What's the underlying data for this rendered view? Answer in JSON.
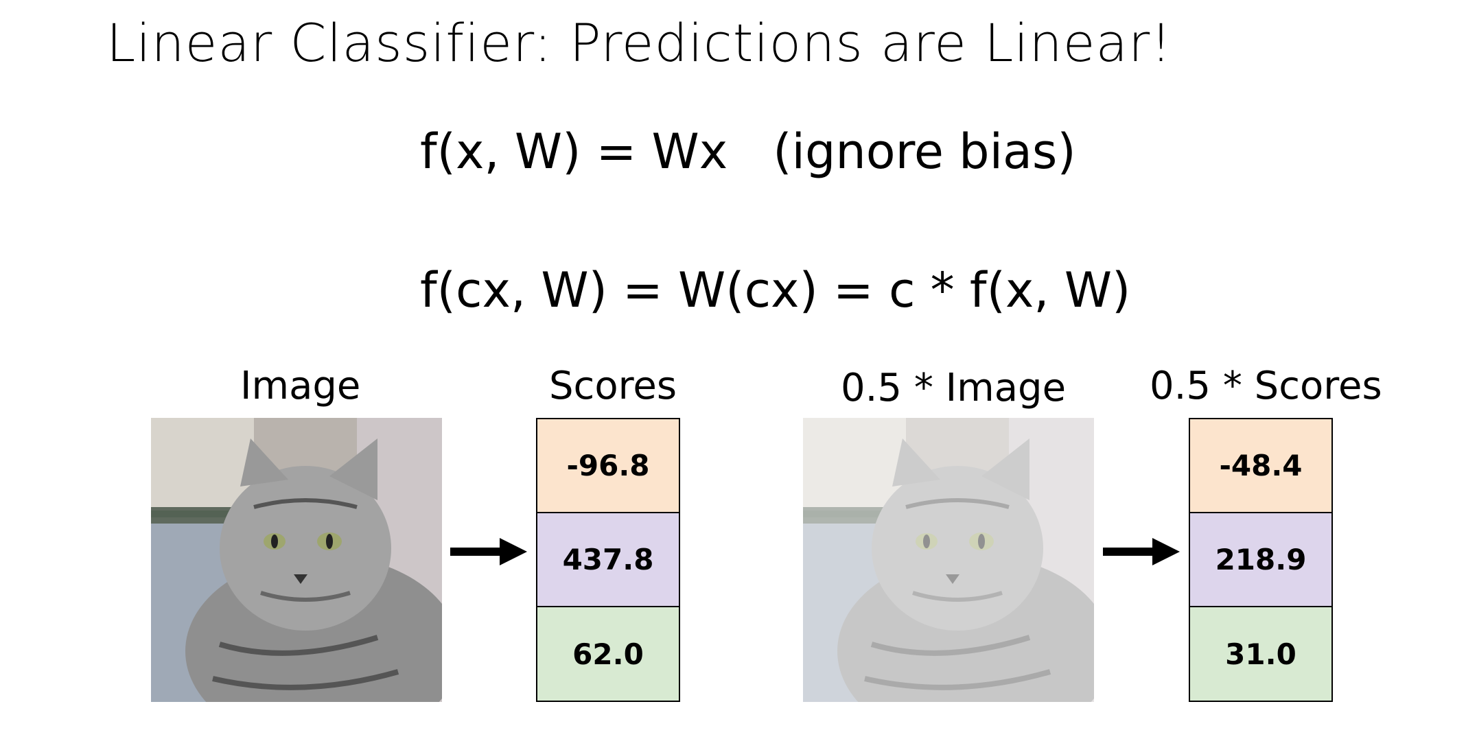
{
  "slide": {
    "title": "Linear Classifier: Predictions are Linear!",
    "equation1_left": "f(x, W) = Wx",
    "equation1_note": "(ignore bias)",
    "equation2": "f(cx, W) = W(cx) = c * f(x, W)"
  },
  "panels": {
    "image_label": "Image",
    "scores_label": "Scores",
    "scaled_image_label": "0.5 * Image",
    "scaled_scores_label": "0.5 * Scores"
  },
  "scores": [
    "-96.8",
    "437.8",
    "62.0"
  ],
  "scaled_scores": [
    "-48.4",
    "218.9",
    "31.0"
  ],
  "colors": {
    "class1": "#fce4cd",
    "class2": "#ddd5ec",
    "class3": "#d8ead2"
  }
}
